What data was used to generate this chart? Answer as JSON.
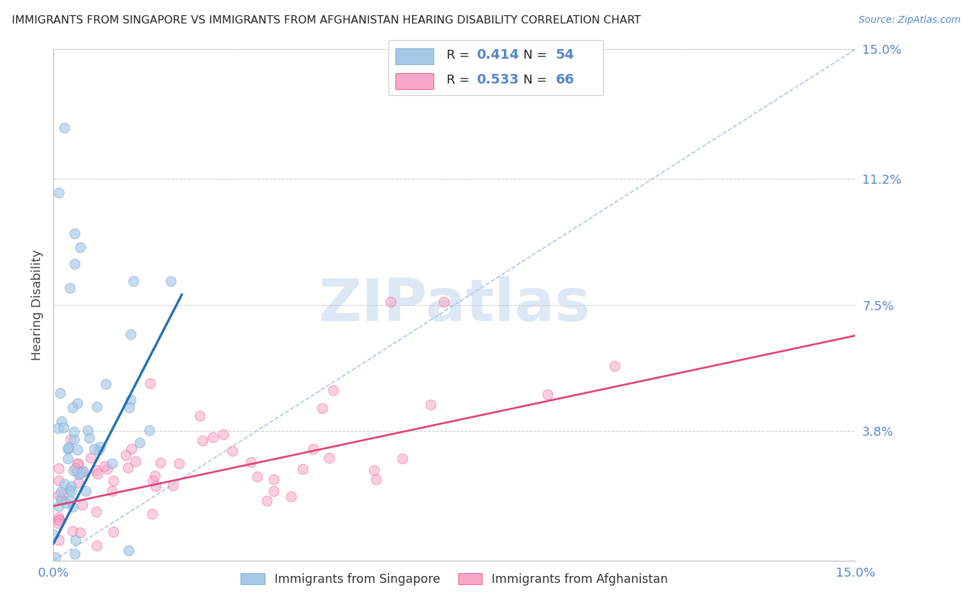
{
  "title": "IMMIGRANTS FROM SINGAPORE VS IMMIGRANTS FROM AFGHANISTAN HEARING DISABILITY CORRELATION CHART",
  "source": "Source: ZipAtlas.com",
  "ylabel": "Hearing Disability",
  "legend_singapore": "Immigrants from Singapore",
  "legend_afghanistan": "Immigrants from Afghanistan",
  "singapore_R": 0.414,
  "singapore_N": 54,
  "afghanistan_R": 0.533,
  "afghanistan_N": 66,
  "color_singapore": "#a8c8e8",
  "color_singapore_edge": "#7bafd4",
  "color_afghanistan": "#f9a8c9",
  "color_afghanistan_edge": "#f06090",
  "color_singapore_line": "#2171b5",
  "color_afghanistan_line": "#e0447a",
  "color_diagonal": "#aac4e8",
  "xlim": [
    0,
    0.15
  ],
  "ylim": [
    0,
    0.15
  ],
  "grid_color": "#cccccc",
  "background_color": "#ffffff",
  "watermark_color": "#dce8f5",
  "title_color": "#222222",
  "axis_label_color": "#5588cc",
  "singapore_line_x": [
    0.0,
    0.024
  ],
  "singapore_line_y": [
    0.005,
    0.078
  ],
  "afghanistan_line_x": [
    0.0,
    0.15
  ],
  "afghanistan_line_y": [
    0.016,
    0.066
  ],
  "diagonal_line_x": [
    0.0,
    0.15
  ],
  "diagonal_line_y": [
    0.0,
    0.15
  ]
}
